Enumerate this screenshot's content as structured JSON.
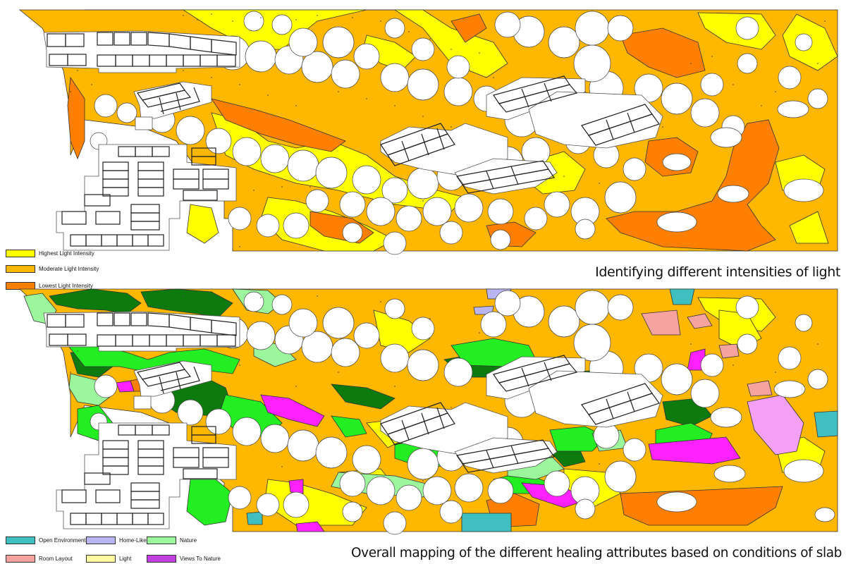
{
  "colors": {
    "highest_light": "#ffff00",
    "moderate_light": "#ffb700",
    "lowest_light": "#ff7f00",
    "open_environment": "#3fbfbf",
    "home_like": "#b9b5f2",
    "nature": "#9cf79c",
    "room_layout": "#f6a3a0",
    "light": "#fffaa0",
    "views_to_nature": "#c040e0",
    "nature_dark": "#0c7a0c",
    "nature_bright": "#22ee22",
    "views_magenta": "#ff22ff"
  },
  "top_panel": {
    "legend": [
      {
        "label": "Highest Light Intensity",
        "color": "#ffff00"
      },
      {
        "label": "Moderate Light Intensity",
        "color": "#ffb700"
      },
      {
        "label": "Lowest Light Intensity",
        "color": "#ff7f00"
      }
    ],
    "caption": "Identifying different intensities of light"
  },
  "bottom_panel": {
    "legend": [
      {
        "label": "Open Environment",
        "color": "#3fbfbf"
      },
      {
        "label": "Home-Like",
        "color": "#b9b5f2"
      },
      {
        "label": "Nature",
        "color": "#9cf79c"
      },
      {
        "label": "Room Layout",
        "color": "#f6a3a0"
      },
      {
        "label": "Light",
        "color": "#fffaa0"
      },
      {
        "label": "Views To Nature",
        "color": "#c040e0"
      }
    ],
    "caption": "Overall mapping of the different healing attributes based on conditions of slab"
  }
}
